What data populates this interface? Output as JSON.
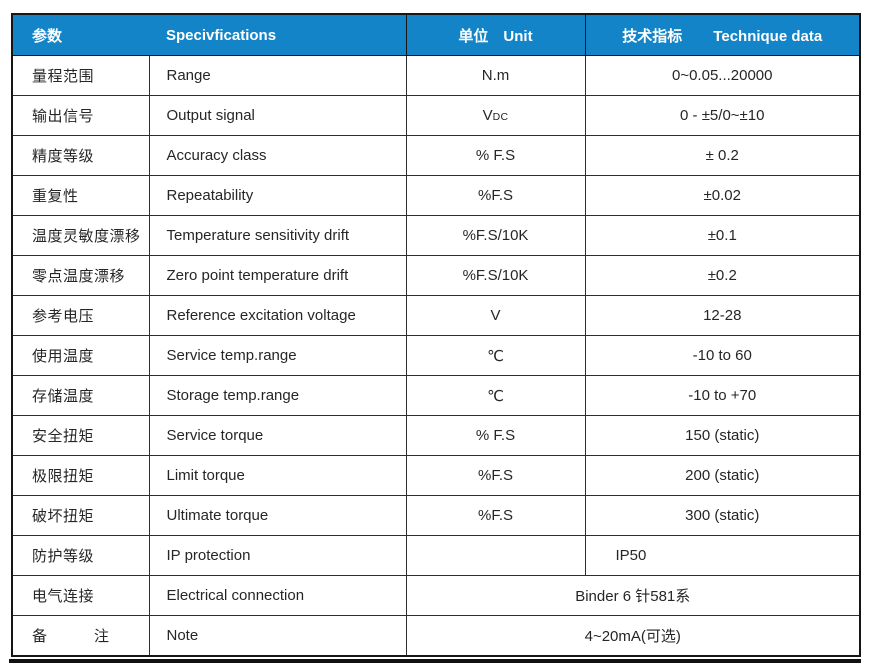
{
  "header": {
    "param_zh": "参数",
    "spec_en": "Specivfications",
    "unit_zh": "单位",
    "unit_en": "Unit",
    "tech_zh": "技术指标",
    "tech_en": "Technique data"
  },
  "colors": {
    "header_bg": "#1284C7",
    "header_text": "#FFFFFF",
    "body_text": "#262626",
    "border": "#2E2E2E"
  },
  "rows": [
    {
      "zh": "量程范围",
      "en": "Range",
      "unit": "N.m",
      "value": "0~0.05...20000"
    },
    {
      "zh": "输出信号",
      "en": "Output signal",
      "unit": "V",
      "unit_sub": "DC",
      "value": "0 - ±5/0~±10"
    },
    {
      "zh": "精度等级",
      "en": "Accuracy class",
      "unit": "% F.S",
      "value": "± 0.2"
    },
    {
      "zh": "重复性",
      "en": "Repeatability",
      "unit": "%F.S",
      "value": "±0.02"
    },
    {
      "zh": "温度灵敏度漂移",
      "en": "Temperature sensitivity drift",
      "unit": "%F.S/10K",
      "value": "±0.1"
    },
    {
      "zh": "零点温度漂移",
      "en": "Zero point temperature drift",
      "unit": "%F.S/10K",
      "value": "±0.2"
    },
    {
      "zh": "参考电压",
      "en": "Reference excitation voltage",
      "unit": "V",
      "value": "12-28"
    },
    {
      "zh": "使用温度",
      "en": "Service temp.range",
      "unit": "℃",
      "value": "-10 to 60"
    },
    {
      "zh": "存储温度",
      "en": "Storage temp.range",
      "unit": "℃",
      "value": "-10 to +70"
    },
    {
      "zh": "安全扭矩",
      "en": "Service torque",
      "unit": "% F.S",
      "value": "150 (static)"
    },
    {
      "zh": "极限扭矩",
      "en": "Limit torque",
      "unit": "%F.S",
      "value": "200 (static)"
    },
    {
      "zh": "破坏扭矩",
      "en": "Ultimate torque",
      "unit": "%F.S",
      "value": "300 (static)"
    },
    {
      "zh": "防护等级",
      "en": "IP protection",
      "unit": "",
      "value": "IP50"
    },
    {
      "zh": "电气连接",
      "en": "Electrical connection",
      "value_merged": "Binder 6 针581系"
    },
    {
      "zh": "备　　　注",
      "en": "Note",
      "value_merged": "4~20mA(可选)"
    }
  ]
}
